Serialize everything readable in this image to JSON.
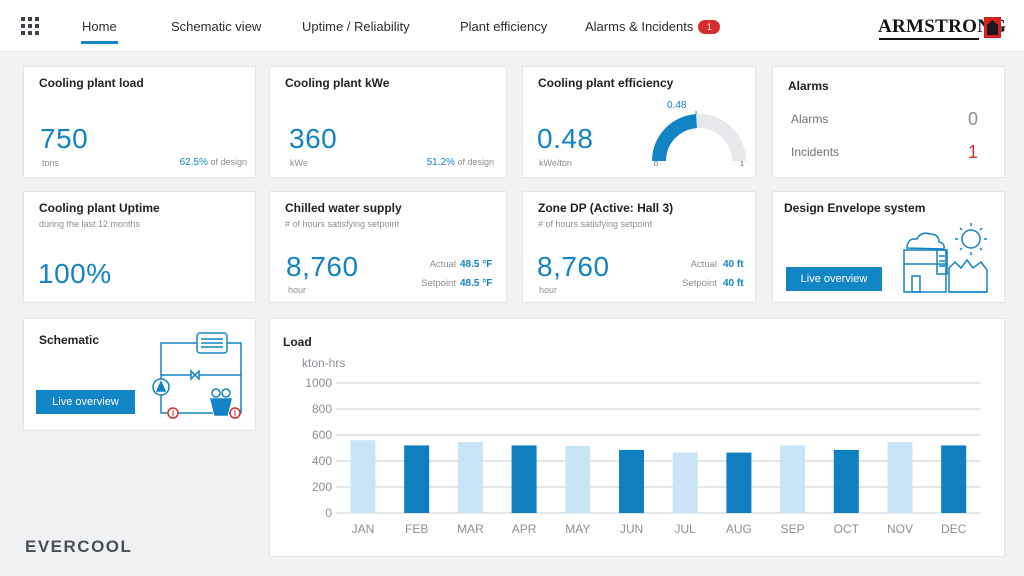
{
  "nav": {
    "tabs": [
      {
        "label": "Home",
        "active": true
      },
      {
        "label": "Schematic view"
      },
      {
        "label": "Uptime / Reliability"
      },
      {
        "label": "Plant efficiency"
      },
      {
        "label": "Alarms & Incidents",
        "badge": "1"
      }
    ],
    "logo": "ARMSTRONG"
  },
  "cards": {
    "load": {
      "title": "Cooling plant load",
      "value": "750",
      "unit": "tons",
      "design_pct": "62.5%",
      "design_suffix": "of design"
    },
    "kwe": {
      "title": "Cooling plant kWe",
      "value": "360",
      "unit": "kWe",
      "design_pct": "51.2%",
      "design_suffix": "of design"
    },
    "efficiency": {
      "title": "Cooling plant efficiency",
      "value": "0.48",
      "unit": "kWe/ton",
      "gauge_label": "0.48",
      "gauge_min": "0",
      "gauge_max": "1",
      "gauge_fraction": 0.48
    },
    "alarms": {
      "title": "Alarms",
      "alarms_label": "Alarms",
      "alarms_value": "0",
      "incidents_label": "Incidents",
      "incidents_value": "1"
    },
    "uptime": {
      "title": "Cooling plant Uptime",
      "subtitle": "during the last 12 months",
      "value": "100%"
    },
    "chw": {
      "title": "Chilled water supply",
      "subtitle": "# of hours satisfying setpoint",
      "value": "8,760",
      "unit": "hour",
      "actual_label": "Actual",
      "actual_value": "48.5 °F",
      "setpoint_label": "Setpoint",
      "setpoint_value": "48.5 °F"
    },
    "zone": {
      "title": "Zone DP (Active: Hall 3)",
      "subtitle": "# of hours satisfying setpoint",
      "value": "8,760",
      "unit": "hour",
      "actual_label": "Actual",
      "actual_value": "40 ft",
      "setpoint_label": "Setpoint",
      "setpoint_value": "40 ft"
    },
    "envelope": {
      "title": "Design Envelope system",
      "button": "Live overview"
    },
    "schematic": {
      "title": "Schematic",
      "button": "Live overview"
    }
  },
  "chart": {
    "title": "Load",
    "ylabel": "kton-hrs"
  },
  "chart_data": {
    "type": "bar",
    "categories": [
      "JAN",
      "FEB",
      "MAR",
      "APR",
      "MAY",
      "JUN",
      "JUL",
      "AUG",
      "SEP",
      "OCT",
      "NOV",
      "DEC"
    ],
    "values": [
      560,
      520,
      545,
      520,
      515,
      485,
      465,
      465,
      520,
      485,
      545,
      520
    ],
    "colors": [
      "#c9e4f4",
      "#0f7fc0",
      "#c9e4f4",
      "#0f7fc0",
      "#c9e4f4",
      "#0f7fc0",
      "#c9e4f4",
      "#0f7fc0",
      "#c9e4f4",
      "#0f7fc0",
      "#c9e4f4",
      "#0f7fc0"
    ],
    "ylabel": "kton-hrs",
    "ylim": [
      0,
      1000
    ],
    "yticks": [
      0,
      200,
      400,
      600,
      800,
      1000
    ],
    "grid": true
  },
  "brand": {
    "footer": "EVERCOOL"
  },
  "colors": {
    "accent": "#1285c7",
    "alert": "#d92d2d",
    "bar_dark": "#0f7fc0",
    "bar_light": "#c9e4f4"
  }
}
